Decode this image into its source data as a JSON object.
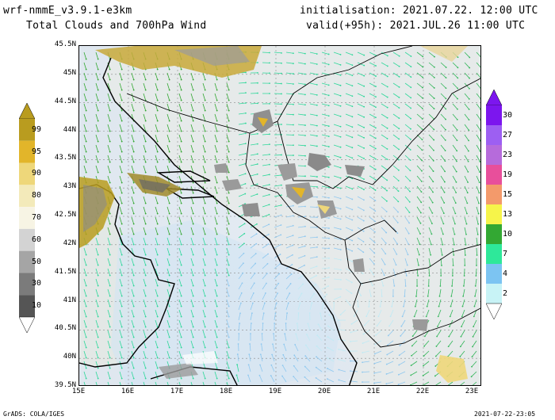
{
  "header": {
    "model": "wrf-nmmE_v3.9.1-e3km",
    "product": "Total Clouds and 700hPa Wind",
    "init": "initialisation: 2021.07.22.  12:00 UTC",
    "valid": "valid(+95h): 2021.JUL.26 11:00 UTC"
  },
  "lat_labels": [
    "45.5N",
    "45N",
    "44.5N",
    "44N",
    "43.5N",
    "43N",
    "42.5N",
    "42N",
    "41.5N",
    "41N",
    "40.5N",
    "40N",
    "39.5N"
  ],
  "lon_labels": [
    "15E",
    "16E",
    "17E",
    "18E",
    "19E",
    "20E",
    "21E",
    "22E",
    "23E"
  ],
  "cloud_scale": {
    "labels": [
      "99",
      "95",
      "90",
      "80",
      "70",
      "60",
      "50",
      "30",
      "10"
    ],
    "colors": [
      "#b99c1f",
      "#e2b52a",
      "#eed77a",
      "#f3eaba",
      "#f7f4e4",
      "#d3d3d3",
      "#a5a5a5",
      "#7b7b7b",
      "#555555"
    ]
  },
  "wind_scale": {
    "labels": [
      "30",
      "27",
      "23",
      "19",
      "15",
      "13",
      "10",
      "7",
      "4",
      "2"
    ],
    "colors": [
      "#7c16ee",
      "#9d5ff2",
      "#b66bdb",
      "#e84f9b",
      "#f39a6b",
      "#f6f44a",
      "#33a833",
      "#2ee89a",
      "#7cc4f2",
      "#c8f3f6"
    ]
  },
  "footer": {
    "left": "GrADS: COLA/IGES",
    "right": "2021-07-22-23:05"
  }
}
